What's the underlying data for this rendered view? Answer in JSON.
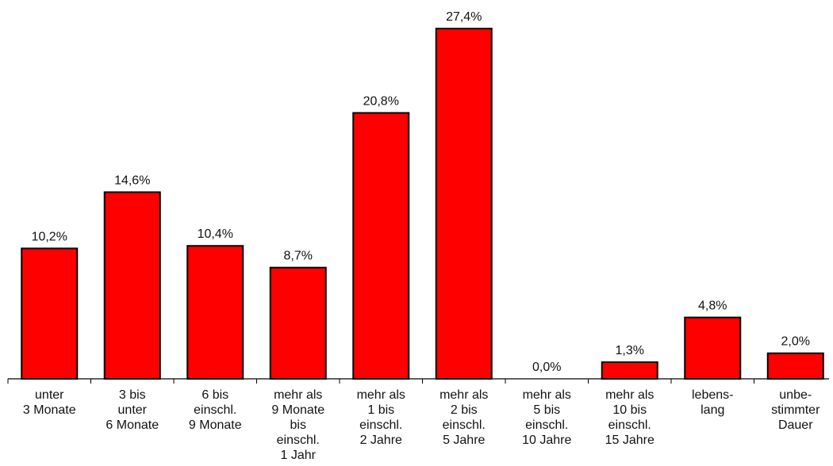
{
  "chart_data": {
    "type": "bar",
    "categories": [
      [
        "unter",
        "3 Monate"
      ],
      [
        "3 bis",
        "unter",
        "6 Monate"
      ],
      [
        "6 bis",
        "einschl.",
        "9 Monate"
      ],
      [
        "mehr als",
        "9 Monate",
        "bis",
        "einschl.",
        "1 Jahr"
      ],
      [
        "mehr als",
        "1 bis",
        "einschl.",
        "2 Jahre"
      ],
      [
        "mehr als",
        "2 bis",
        "einschl.",
        "5 Jahre"
      ],
      [
        "mehr als",
        "5 bis",
        "einschl.",
        "10 Jahre"
      ],
      [
        "mehr als",
        "10 bis",
        "einschl.",
        "15 Jahre"
      ],
      [
        "lebens-",
        "lang"
      ],
      [
        "unbe-",
        "stimmter",
        "Dauer"
      ]
    ],
    "values": [
      10.2,
      14.6,
      10.4,
      8.7,
      20.8,
      27.4,
      0.0,
      1.3,
      4.8,
      2.0
    ],
    "value_labels": [
      "10,2%",
      "14,6%",
      "10,4%",
      "8,7%",
      "20,8%",
      "27,4%",
      "0,0%",
      "1,3%",
      "4,8%",
      "2,0%"
    ],
    "title": "",
    "xlabel": "",
    "ylabel": "",
    "ylim": [
      0,
      27.4
    ],
    "grid": false,
    "legend": "none",
    "colors": {
      "bar_fill": "#ff0000",
      "bar_stroke": "#000000",
      "text": "#111111",
      "axis": "#000000"
    }
  }
}
